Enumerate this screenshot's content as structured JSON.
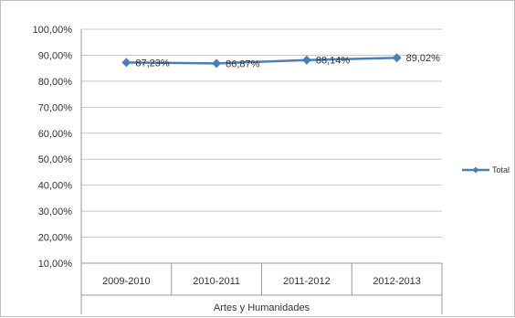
{
  "chart_data": {
    "type": "line",
    "title": "",
    "xlabel": "Artes y Humanidades",
    "ylabel": "",
    "categories": [
      "2009-2010",
      "2010-2011",
      "2011-2012",
      "2012-2013"
    ],
    "group_label": "Artes y Humanidades",
    "series": [
      {
        "name": "Total",
        "values": [
          87.23,
          86.87,
          88.14,
          89.02
        ],
        "labels": [
          "87,23%",
          "86,87%",
          "88,14%",
          "89,02%"
        ],
        "color": "#4a7ebb"
      }
    ],
    "ylim": [
      10,
      100
    ],
    "yticks": [
      10,
      20,
      30,
      40,
      50,
      60,
      70,
      80,
      90,
      100
    ],
    "ytick_labels": [
      "10,00%",
      "20,00%",
      "30,00%",
      "40,00%",
      "50,00%",
      "60,00%",
      "70,00%",
      "80,00%",
      "90,00%",
      "100,00%"
    ],
    "grid": true,
    "legend": "right",
    "gridline_color": "#c8c8c8"
  }
}
